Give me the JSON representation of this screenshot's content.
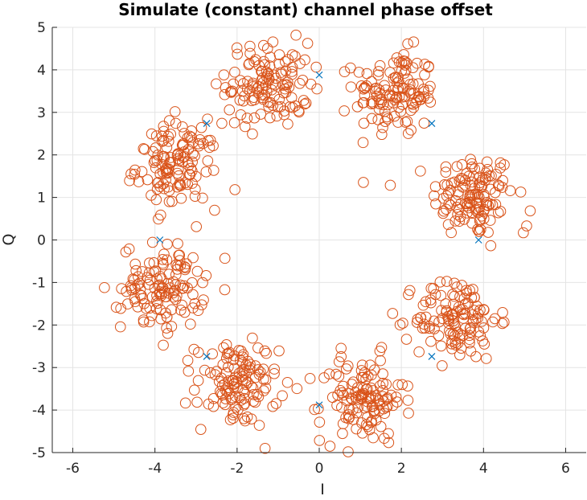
{
  "chart_data": {
    "type": "scatter",
    "title": "Simulate (constant) channel phase offset",
    "xlabel": "I",
    "ylabel": "Q",
    "xlim": [
      -6.5,
      6.5
    ],
    "ylim": [
      -5,
      5
    ],
    "xticks": [
      -6,
      -4,
      -2,
      0,
      2,
      4,
      6
    ],
    "yticks": [
      -5,
      -4,
      -3,
      -2,
      -1,
      0,
      1,
      2,
      3,
      4,
      5
    ],
    "xtick_labels": [
      "-6",
      "-4",
      "-2",
      "0",
      "2",
      "4",
      "6"
    ],
    "ytick_labels": [
      "-5",
      "-4",
      "-3",
      "-2",
      "-1",
      "0",
      "1",
      "2",
      "3",
      "4",
      "5"
    ],
    "grid": true,
    "colors": {
      "received": "#D95319",
      "reference": "#0072BD"
    },
    "series": [
      {
        "marker": "x",
        "x": [
          3.88,
          2.74,
          0.0,
          -2.74,
          -3.88,
          -2.74,
          0.0,
          2.74
        ],
        "y": [
          0.0,
          2.74,
          3.88,
          2.74,
          0.0,
          -2.74,
          -3.88,
          -2.74
        ]
      },
      {
        "marker": "o",
        "cluster_centers": [
          [
            3.75,
            1.05
          ],
          [
            1.85,
            3.45
          ],
          [
            -1.25,
            3.65
          ],
          [
            -3.45,
            1.75
          ],
          [
            -3.8,
            -1.1
          ],
          [
            -2.0,
            -3.4
          ],
          [
            1.05,
            -3.75
          ],
          [
            3.35,
            -1.85
          ]
        ],
        "cluster_spread": 0.5,
        "points_per_cluster": 125,
        "x": [
          5.05,
          4.97,
          -5.23
        ],
        "y": [
          0.33,
          0.17,
          -1.12
        ]
      }
    ]
  }
}
